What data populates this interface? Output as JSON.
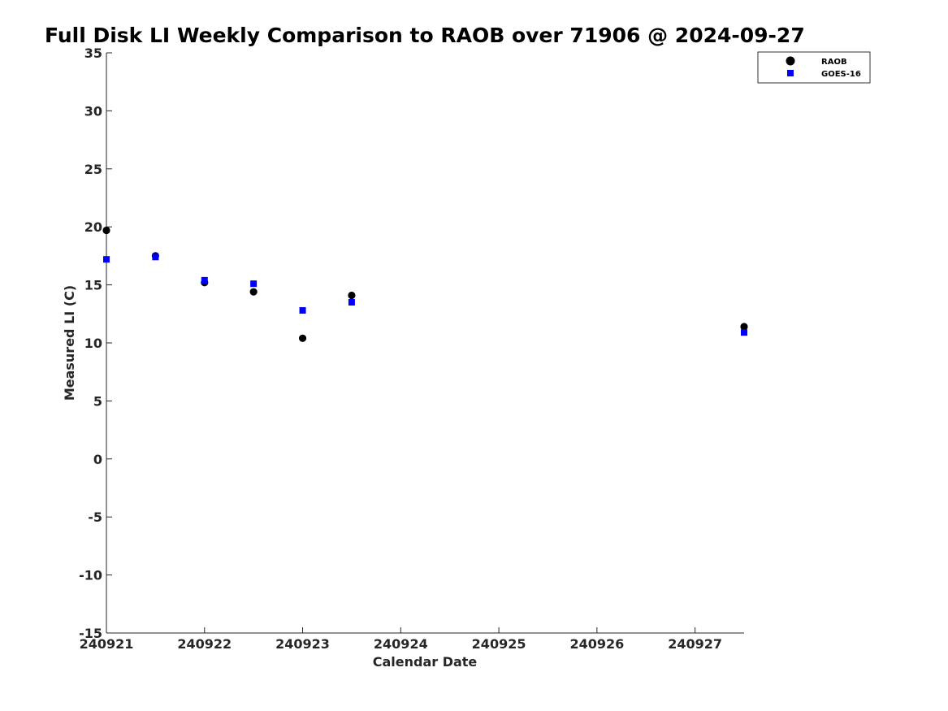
{
  "chart_data": {
    "type": "scatter",
    "title": "Full Disk LI Weekly Comparison to RAOB over 71906 @ 2024-09-27",
    "xlabel": "Calendar Date",
    "ylabel": "Measured LI (C)",
    "xlim": [
      "2024-09-21",
      "2024-09-27 12:00"
    ],
    "ylim": [
      -15,
      35
    ],
    "x_ticks": [
      "240921",
      "240922",
      "240923",
      "240924",
      "240925",
      "240926",
      "240927"
    ],
    "y_ticks": [
      "35",
      "30",
      "25",
      "20",
      "15",
      "10",
      "5",
      "0",
      "-5",
      "-10",
      "-15"
    ],
    "grid": false,
    "legend_position": "top-right",
    "series": [
      {
        "name": "RAOB",
        "marker": "circle",
        "color": "#000000",
        "points": [
          {
            "x": "2024-09-21 00:00",
            "y": 19.7
          },
          {
            "x": "2024-09-21 12:00",
            "y": 17.5
          },
          {
            "x": "2024-09-22 00:00",
            "y": 15.2
          },
          {
            "x": "2024-09-22 12:00",
            "y": 14.4
          },
          {
            "x": "2024-09-23 00:00",
            "y": 10.4
          },
          {
            "x": "2024-09-23 12:00",
            "y": 14.1
          },
          {
            "x": "2024-09-27 12:00",
            "y": 11.4
          }
        ]
      },
      {
        "name": "GOES-16",
        "marker": "square",
        "color": "#0000ff",
        "points": [
          {
            "x": "2024-09-21 00:00",
            "y": 17.2
          },
          {
            "x": "2024-09-21 12:00",
            "y": 17.4
          },
          {
            "x": "2024-09-22 00:00",
            "y": 15.4
          },
          {
            "x": "2024-09-22 12:00",
            "y": 15.1
          },
          {
            "x": "2024-09-23 00:00",
            "y": 12.8
          },
          {
            "x": "2024-09-23 12:00",
            "y": 13.5
          },
          {
            "x": "2024-09-27 12:00",
            "y": 10.9
          }
        ]
      }
    ]
  }
}
